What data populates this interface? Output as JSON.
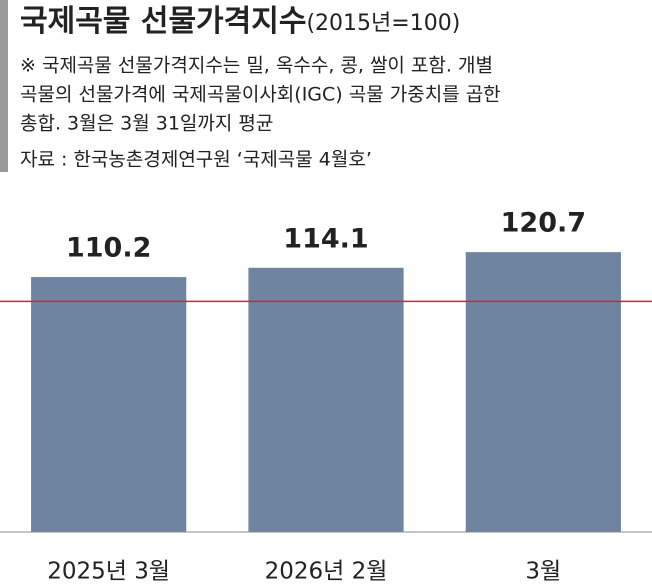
{
  "chart_data": {
    "type": "bar",
    "title": "국제곡물 선물가격지수",
    "subtitle": "(2015년=100)",
    "note": [
      "※ 국제곡물 선물가격지수는 밀, 옥수수, 콩, 쌀이 포함. 개별",
      "곡물의 선물가격에 국제곡물이사회(IGC) 곡물 가중치를 곱한",
      "총합. 3월은 3월 31일까지 평균"
    ],
    "source": "자료 : 한국농촌경제연구원 ‘국제곡물 4월호’",
    "categories": [
      "2025년 3월",
      "2026년 2월",
      "3월"
    ],
    "values": [
      110.2,
      114.1,
      120.7
    ],
    "color": "#6e84a0",
    "reference_line": {
      "value": 100,
      "color": "#d9232a"
    },
    "ylim": [
      3,
      130
    ]
  }
}
